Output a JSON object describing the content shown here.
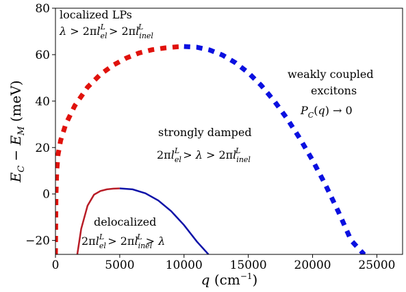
{
  "chart_data": {
    "type": "line",
    "xlabel": "q (cm⁻¹)",
    "ylabel": "E_C − E_M (meV)",
    "xlim": [
      0,
      27000
    ],
    "ylim": [
      -26,
      80
    ],
    "xticks": [
      0,
      5000,
      10000,
      15000,
      20000,
      25000
    ],
    "yticks": [
      -20,
      0,
      20,
      40,
      60,
      80
    ],
    "grid": false,
    "series": [
      {
        "style": "dashed",
        "color": "#e0120c",
        "x": [
          0,
          40,
          100,
          200,
          400,
          800,
          1500,
          2500,
          3500,
          4500,
          5500,
          6500,
          7500,
          8500,
          9500,
          9900
        ],
        "y": [
          -26,
          0,
          10,
          17,
          23,
          30,
          38,
          46,
          51.5,
          55.5,
          58.5,
          60.7,
          62.1,
          62.9,
          63.4,
          63.5
        ]
      },
      {
        "style": "dashed",
        "color": "#0a10e0",
        "x": [
          10000,
          11000,
          12000,
          13000,
          14000,
          15000,
          16000,
          17000,
          18000,
          19000,
          20000,
          21000,
          22000,
          23000,
          24000,
          24500
        ],
        "y": [
          63.5,
          63.2,
          62.0,
          59.8,
          56.5,
          52.2,
          46.8,
          40.2,
          32.6,
          24.0,
          14.5,
          4.0,
          -7.5,
          -20.0,
          -26,
          -26
        ]
      },
      {
        "style": "solid",
        "color": "#b81c26",
        "x": [
          1700,
          2000,
          2500,
          3000,
          3500,
          4000,
          4500,
          5000
        ],
        "y": [
          -26,
          -15,
          -5,
          -0.3,
          1.3,
          2.0,
          2.3,
          2.4
        ]
      },
      {
        "style": "solid",
        "color": "#0d12a8",
        "x": [
          5000,
          6000,
          7000,
          8000,
          9000,
          10000,
          11000,
          11900
        ],
        "y": [
          2.4,
          2.0,
          0.3,
          -2.8,
          -7.4,
          -13.4,
          -20.5,
          -26
        ]
      }
    ],
    "annotations": {
      "localized_title": "localized LPs",
      "localized_condition": "λ > 2πlᵉˡ > 2πlⁱⁿᵉˡ",
      "weak_title_1": "weakly coupled",
      "weak_title_2": "excitons",
      "weak_condition": "P_C(q) → 0",
      "damped_title": "strongly damped",
      "damped_condition": "2πlᵉˡ > λ > 2πlⁱⁿᵉˡ",
      "deloc_title": "delocalized",
      "deloc_condition": "2πlᵉˡ > 2πlⁱⁿᵉˡ > λ"
    }
  }
}
